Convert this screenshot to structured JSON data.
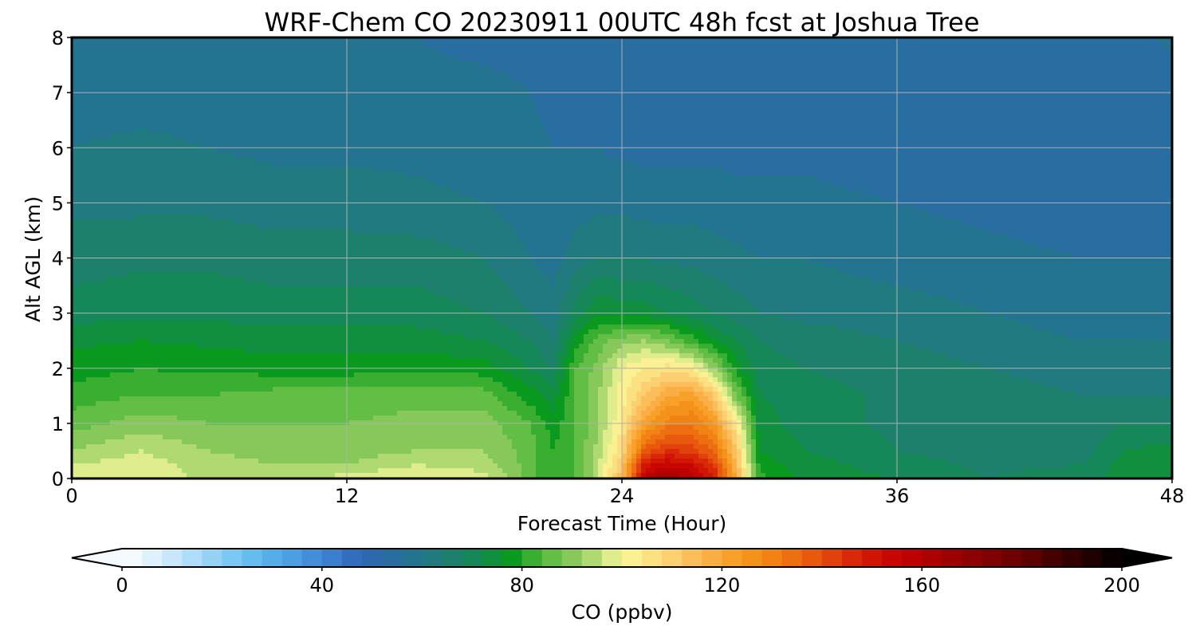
{
  "chart_data": {
    "type": "heatmap",
    "title": "WRF-Chem CO  20230911 00UTC 48h fcst at Joshua Tree",
    "xlabel": "Forecast Time (Hour)",
    "ylabel": "Alt AGL (km)",
    "xlim": [
      0,
      48
    ],
    "ylim": [
      0,
      8
    ],
    "xticks": [
      "0",
      "12",
      "24",
      "36",
      "48"
    ],
    "yticks": [
      "0",
      "1",
      "2",
      "3",
      "4",
      "5",
      "6",
      "7",
      "8"
    ],
    "grid": true,
    "x_hours": [
      0,
      3,
      6,
      9,
      12,
      15,
      18,
      20,
      21,
      22,
      23,
      24,
      25,
      26,
      27,
      28,
      29,
      30,
      32,
      36,
      40,
      44,
      46,
      48
    ],
    "z_km": [
      0,
      0.25,
      0.5,
      1,
      1.5,
      2,
      2.5,
      3,
      4,
      5,
      6,
      7,
      8
    ],
    "values_ppbv": [
      [
        100,
        96,
        92,
        86,
        82,
        78,
        75,
        70,
        66,
        63,
        60,
        58,
        57
      ],
      [
        99,
        98,
        96,
        90,
        84,
        80,
        76,
        71,
        67,
        63,
        61,
        58,
        57
      ],
      [
        95,
        94,
        92,
        88,
        84,
        79,
        75,
        71,
        67,
        63,
        60,
        58,
        57
      ],
      [
        93,
        92,
        90,
        88,
        86,
        78,
        74,
        70,
        66,
        62,
        59,
        57,
        56
      ],
      [
        98,
        92,
        90,
        88,
        86,
        78,
        74,
        70,
        66,
        62,
        59,
        57,
        56
      ],
      [
        100,
        96,
        92,
        89,
        87,
        79,
        74,
        70,
        66,
        61,
        59,
        57,
        56
      ],
      [
        98,
        94,
        92,
        90,
        86,
        78,
        72,
        68,
        64,
        60,
        58,
        57,
        55
      ],
      [
        86,
        86,
        86,
        84,
        78,
        72,
        68,
        64,
        60,
        58,
        57,
        56,
        55
      ],
      [
        80,
        80,
        80,
        78,
        74,
        68,
        64,
        62,
        58,
        57,
        56,
        55,
        55
      ],
      [
        84,
        84,
        84,
        84,
        84,
        84,
        78,
        70,
        62,
        58,
        56,
        55,
        54
      ],
      [
        96,
        96,
        94,
        92,
        92,
        90,
        86,
        76,
        64,
        59,
        56,
        55,
        54
      ],
      [
        115,
        112,
        108,
        104,
        102,
        100,
        90,
        74,
        64,
        59,
        55,
        54,
        53
      ],
      [
        160,
        150,
        138,
        122,
        112,
        104,
        92,
        74,
        64,
        58,
        55,
        53,
        53
      ],
      [
        165,
        155,
        145,
        130,
        120,
        106,
        88,
        72,
        63,
        58,
        55,
        53,
        53
      ],
      [
        160,
        152,
        142,
        132,
        122,
        104,
        82,
        70,
        63,
        58,
        55,
        53,
        53
      ],
      [
        150,
        144,
        136,
        124,
        112,
        92,
        76,
        68,
        62,
        58,
        55,
        53,
        53
      ],
      [
        118,
        116,
        112,
        104,
        88,
        78,
        72,
        66,
        61,
        57,
        55,
        53,
        53
      ],
      [
        82,
        78,
        76,
        74,
        72,
        70,
        68,
        64,
        60,
        57,
        55,
        53,
        53
      ],
      [
        74,
        74,
        72,
        70,
        70,
        68,
        66,
        63,
        60,
        57,
        55,
        53,
        53
      ],
      [
        72,
        70,
        68,
        67,
        67,
        66,
        64,
        62,
        58,
        56,
        54,
        53,
        53
      ],
      [
        68,
        67,
        66,
        66,
        66,
        64,
        62,
        60,
        57,
        55,
        53,
        53,
        53
      ],
      [
        70,
        68,
        66,
        66,
        64,
        62,
        60,
        58,
        56,
        54,
        53,
        53,
        53
      ],
      [
        74,
        74,
        72,
        68,
        64,
        62,
        60,
        58,
        56,
        54,
        53,
        53,
        54
      ],
      [
        76,
        76,
        74,
        68,
        64,
        62,
        60,
        58,
        56,
        54,
        53,
        53,
        57
      ]
    ],
    "colorbar": {
      "label": "CO  (ppbv)",
      "min": 0,
      "max": 200,
      "ticks": [
        "0",
        "40",
        "80",
        "120",
        "160",
        "200"
      ],
      "extend": "both",
      "level_step": 4,
      "color_stops": [
        [
          0,
          "#ffffff"
        ],
        [
          8,
          "#d4ecfb"
        ],
        [
          16,
          "#a3d7f7"
        ],
        [
          24,
          "#6cc3f1"
        ],
        [
          32,
          "#4fa7e6"
        ],
        [
          40,
          "#3f86d4"
        ],
        [
          48,
          "#2f66b6"
        ],
        [
          56,
          "#25709a"
        ],
        [
          64,
          "#1f7d76"
        ],
        [
          72,
          "#138a4f"
        ],
        [
          78,
          "#0a9a20"
        ],
        [
          84,
          "#52b83a"
        ],
        [
          90,
          "#86c95a"
        ],
        [
          96,
          "#c3e27e"
        ],
        [
          100,
          "#fbf89a"
        ],
        [
          108,
          "#fcd97a"
        ],
        [
          116,
          "#fbb550"
        ],
        [
          124,
          "#f59a1e"
        ],
        [
          132,
          "#ef7a10"
        ],
        [
          140,
          "#e54d0c"
        ],
        [
          148,
          "#d41c06"
        ],
        [
          156,
          "#c40000"
        ],
        [
          168,
          "#950000"
        ],
        [
          180,
          "#660000"
        ],
        [
          190,
          "#330000"
        ],
        [
          200,
          "#000000"
        ]
      ]
    }
  }
}
